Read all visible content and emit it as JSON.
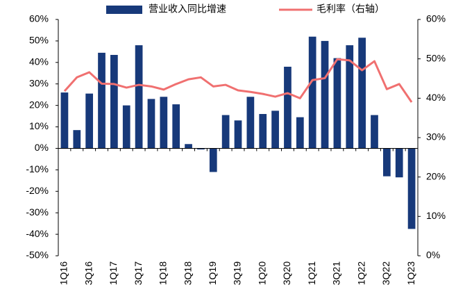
{
  "chart_data": {
    "type": "bar",
    "categories": [
      "1Q16",
      null,
      "3Q16",
      null,
      "1Q17",
      null,
      "3Q17",
      null,
      "1Q18",
      null,
      "3Q18",
      null,
      "1Q19",
      null,
      "3Q19",
      null,
      "1Q20",
      null,
      "3Q20",
      null,
      "1Q21",
      null,
      "3Q21",
      null,
      "1Q22",
      null,
      "3Q22",
      null,
      "1Q23"
    ],
    "series": [
      {
        "name": "营业收入同比增速",
        "color": "#17397a",
        "values": [
          26,
          8.5,
          25.5,
          44.5,
          43.5,
          20,
          48,
          23,
          24,
          20.5,
          2,
          -0.5,
          -11,
          15.5,
          13,
          24,
          16,
          17.5,
          38,
          14.5,
          52,
          50,
          42,
          48,
          51.5,
          15.5,
          -13,
          -13.5,
          -37.5
        ]
      },
      {
        "name": "毛利率（右轴）",
        "color": "#f07070",
        "type": "line",
        "axis": "y2",
        "values": [
          41.8,
          45.3,
          46.6,
          43.7,
          43.6,
          42.7,
          43.4,
          43.0,
          42.2,
          43.6,
          44.8,
          45.3,
          43.0,
          43.4,
          42.0,
          41.6,
          41.1,
          40.4,
          41.3,
          40.0,
          44.6,
          45.1,
          49.9,
          49.6,
          47.1,
          49.4,
          42.3,
          43.6,
          39.0
        ]
      }
    ],
    "ylim": [
      -50,
      60
    ],
    "yticks": [
      {
        "value": -50,
        "label": "-50%"
      },
      {
        "value": -40,
        "label": "-40%"
      },
      {
        "value": -30,
        "label": "-30%"
      },
      {
        "value": -20,
        "label": "-20%"
      },
      {
        "value": -10,
        "label": "-10%"
      },
      {
        "value": 0,
        "label": "0%"
      },
      {
        "value": 10,
        "label": "10%"
      },
      {
        "value": 20,
        "label": "20%"
      },
      {
        "value": 30,
        "label": "30%"
      },
      {
        "value": 40,
        "label": "40%"
      },
      {
        "value": 50,
        "label": "50%"
      },
      {
        "value": 60,
        "label": "60%"
      }
    ],
    "y2lim": [
      0,
      60
    ],
    "y2ticks": [
      {
        "value": 0,
        "label": "0%"
      },
      {
        "value": 10,
        "label": "10%"
      },
      {
        "value": 20,
        "label": "20%"
      },
      {
        "value": 30,
        "label": "30%"
      },
      {
        "value": 40,
        "label": "40%"
      },
      {
        "value": 50,
        "label": "50%"
      },
      {
        "value": 60,
        "label": "60%"
      }
    ]
  }
}
